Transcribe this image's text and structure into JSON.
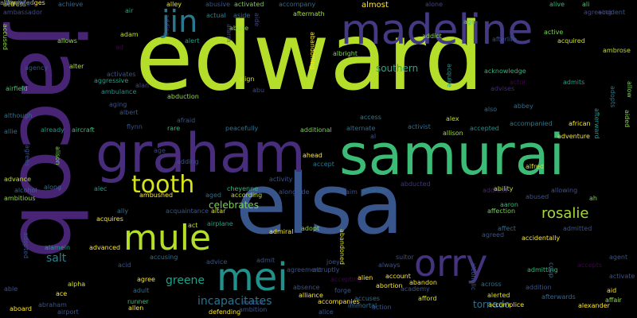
{
  "words": [
    {
      "text": "edward",
      "color": "#b5de2b"
    },
    {
      "text": "jacob",
      "color": "#482475"
    },
    {
      "text": "elsa",
      "color": "#39568c"
    },
    {
      "text": "samurai",
      "color": "#3bbb75"
    },
    {
      "text": "graham",
      "color": "#472d7b"
    },
    {
      "text": "madeline",
      "color": "#443a83"
    },
    {
      "text": "orry",
      "color": "#46337e"
    },
    {
      "text": "mule",
      "color": "#b5de2b"
    },
    {
      "text": "mei",
      "color": "#21918c"
    },
    {
      "text": "tooth",
      "color": "#d8e219"
    },
    {
      "text": "jin",
      "color": "#2a788e"
    },
    {
      "text": "rosalie",
      "color": "#a5db36"
    },
    {
      "text": "salt",
      "color": "#26828e"
    },
    {
      "text": "incapacitates",
      "color": "#2c728e"
    },
    {
      "text": "celebrates",
      "color": "#7ad151"
    },
    {
      "text": "greene",
      "color": "#1fa187"
    },
    {
      "text": "tornado",
      "color": "#2c728e"
    },
    {
      "text": "southern",
      "color": "#22a785"
    },
    {
      "text": "accept",
      "color": "#2a788e"
    },
    {
      "text": "actress",
      "color": "#bddf26"
    },
    {
      "text": "achieve",
      "color": "#31688e"
    },
    {
      "text": "air",
      "color": "#20a386"
    },
    {
      "text": "alley",
      "color": "#e5e419"
    },
    {
      "text": "abusive",
      "color": "#3a548c"
    },
    {
      "text": "activated",
      "color": "#75d054"
    },
    {
      "text": "accompany",
      "color": "#31688e"
    },
    {
      "text": "almost",
      "color": "#fde725"
    },
    {
      "text": "alone",
      "color": "#404588"
    },
    {
      "text": "alive",
      "color": "#35b779"
    },
    {
      "text": "ali",
      "color": "#52c569"
    },
    {
      "text": "accident",
      "color": "#38588c"
    },
    {
      "text": "ambassador",
      "color": "#3e4989"
    },
    {
      "text": "accused",
      "color": "#8fd744"
    },
    {
      "text": "allows",
      "color": "#90d743"
    },
    {
      "text": "adam",
      "color": "#c2df23"
    },
    {
      "text": "alert",
      "color": "#1fa088"
    },
    {
      "text": "alarm",
      "color": "#3f4788"
    },
    {
      "text": "abuse",
      "color": "#8bd646"
    },
    {
      "text": "aide",
      "color": "#404688"
    },
    {
      "text": "aftermath",
      "color": "#a2da37"
    },
    {
      "text": "addict",
      "color": "#85d54a"
    },
    {
      "text": "ago",
      "color": "#5ac864"
    },
    {
      "text": "afterlife",
      "color": "#3b528b"
    },
    {
      "text": "active",
      "color": "#7ad151"
    },
    {
      "text": "acquired",
      "color": "#cde11d"
    },
    {
      "text": "agreeing",
      "color": "#414487"
    },
    {
      "text": "ambrose",
      "color": "#bddf26"
    },
    {
      "text": "adding",
      "color": "#3b528b"
    },
    {
      "text": "actual",
      "color": "#26828e"
    },
    {
      "text": "aside",
      "color": "#2e6e8e"
    },
    {
      "text": "abandoning",
      "color": "#fde725"
    },
    {
      "text": "albright",
      "color": "#7fd34e"
    },
    {
      "text": "acquire",
      "color": "#1f948c"
    },
    {
      "text": "acknowledge",
      "color": "#31b57b"
    },
    {
      "text": "agency",
      "color": "#3b528b"
    },
    {
      "text": "ad",
      "color": "#440154"
    },
    {
      "text": "alter",
      "color": "#a8db34"
    },
    {
      "text": "activates",
      "color": "#3b528b"
    },
    {
      "text": "alan",
      "color": "#3e4989"
    },
    {
      "text": "aggressive",
      "color": "#1fa187"
    },
    {
      "text": "airfield",
      "color": "#48c16e"
    },
    {
      "text": "ambulance",
      "color": "#21918c"
    },
    {
      "text": "align",
      "color": "#d2e21b"
    },
    {
      "text": "abu",
      "color": "#3e4989"
    },
    {
      "text": "advises",
      "color": "#472a7a"
    },
    {
      "text": "actor",
      "color": "#440154"
    },
    {
      "text": "admits",
      "color": "#1fa088"
    },
    {
      "text": "abbey",
      "color": "#2e6e8e"
    },
    {
      "text": "allow",
      "color": "#77d153"
    },
    {
      "text": "abduction",
      "color": "#90d743"
    },
    {
      "text": "aging",
      "color": "#3b528b"
    },
    {
      "text": "albert",
      "color": "#3a548c"
    },
    {
      "text": "also",
      "color": "#31688e"
    },
    {
      "text": "adopts",
      "color": "#2a788e"
    },
    {
      "text": "afterward",
      "color": "#1f988b"
    },
    {
      "text": "aided",
      "color": "#8bd646"
    },
    {
      "text": "although",
      "color": "#2d708e"
    },
    {
      "text": "afraid",
      "color": "#3b528b"
    },
    {
      "text": "access",
      "color": "#26828e"
    },
    {
      "text": "alex",
      "color": "#bddf26"
    },
    {
      "text": "accompanied",
      "color": "#2a788e"
    },
    {
      "text": "african",
      "color": "#fde725"
    },
    {
      "text": "allie",
      "color": "#2e6e8e"
    },
    {
      "text": "already",
      "color": "#1f988b"
    },
    {
      "text": "aircraft",
      "color": "#3bbb75"
    },
    {
      "text": "flynn",
      "color": "#3b528b"
    },
    {
      "text": "rare",
      "color": "#35b779"
    },
    {
      "text": "peacefully",
      "color": "#2c728e"
    },
    {
      "text": "additional",
      "color": "#75d054"
    },
    {
      "text": "alternate",
      "color": "#2e6e8e"
    },
    {
      "text": "activist",
      "color": "#2e6e8e"
    },
    {
      "text": "accepted",
      "color": "#21918c"
    },
    {
      "text": "adventure",
      "color": "#fde725"
    },
    {
      "text": "al",
      "color": "#3b528b"
    },
    {
      "text": "allison",
      "color": "#a0da39"
    },
    {
      "text": "agrees",
      "color": "#3b528b"
    },
    {
      "text": "alison",
      "color": "#7ad151"
    },
    {
      "text": "age",
      "color": "#414487"
    },
    {
      "text": "adding",
      "color": "#3b528b"
    },
    {
      "text": "ahead",
      "color": "#fde725"
    },
    {
      "text": "alfred",
      "color": "#d8e219"
    },
    {
      "text": "advance",
      "color": "#bddf26"
    },
    {
      "text": "along",
      "color": "#2e6e8e"
    },
    {
      "text": "alcohol",
      "color": "#31688e"
    },
    {
      "text": "ambitious",
      "color": "#8fd744"
    },
    {
      "text": "ambushed",
      "color": "#fde725"
    },
    {
      "text": "aged",
      "color": "#2e6e8e"
    },
    {
      "text": "according",
      "color": "#bddf26"
    },
    {
      "text": "activity",
      "color": "#3b528b"
    },
    {
      "text": "abducted",
      "color": "#46337e"
    },
    {
      "text": "address",
      "color": "#482475"
    },
    {
      "text": "ability",
      "color": "#bddf26"
    },
    {
      "text": "allowing",
      "color": "#3a548c"
    },
    {
      "text": "alec",
      "color": "#1fa088"
    },
    {
      "text": "cheyenne",
      "color": "#35b779"
    },
    {
      "text": "alongside",
      "color": "#3a548c"
    },
    {
      "text": "aim",
      "color": "#3b528b"
    },
    {
      "text": "amends",
      "color": "#2e6e8e"
    },
    {
      "text": "abused",
      "color": "#3b528b"
    },
    {
      "text": "ah",
      "color": "#7ad151"
    },
    {
      "text": "ally",
      "color": "#2e6e8e"
    },
    {
      "text": "acquaintance",
      "color": "#3b528b"
    },
    {
      "text": "altar",
      "color": "#d2e21b"
    },
    {
      "text": "acquires",
      "color": "#fde725"
    },
    {
      "text": "aaron",
      "color": "#35b779"
    },
    {
      "text": "affection",
      "color": "#75d054"
    },
    {
      "text": "act",
      "color": "#bddf26"
    },
    {
      "text": "airplane",
      "color": "#1fa187"
    },
    {
      "text": "admiral",
      "color": "#fde725"
    },
    {
      "text": "adopt",
      "color": "#8fd744"
    },
    {
      "text": "abandoned",
      "color": "#d8e219"
    },
    {
      "text": "affect",
      "color": "#2e6e8e"
    },
    {
      "text": "admitted",
      "color": "#3b528b"
    },
    {
      "text": "agreed",
      "color": "#3b528b"
    },
    {
      "text": "accidentally",
      "color": "#fde725"
    },
    {
      "text": "adopted",
      "color": "#3b528b"
    },
    {
      "text": "alamein",
      "color": "#1fa187"
    },
    {
      "text": "advanced",
      "color": "#fde725"
    },
    {
      "text": "accusing",
      "color": "#2e6e8e"
    },
    {
      "text": "advice",
      "color": "#3a548c"
    },
    {
      "text": "admit",
      "color": "#3b528b"
    },
    {
      "text": "agreement",
      "color": "#3b528b"
    },
    {
      "text": "abruptly",
      "color": "#3b528b"
    },
    {
      "text": "joey",
      "color": "#3b528b"
    },
    {
      "text": "always",
      "color": "#3b528b"
    },
    {
      "text": "suitor",
      "color": "#3b528b"
    },
    {
      "text": "admitting",
      "color": "#35b779"
    },
    {
      "text": "accepts",
      "color": "#440154"
    },
    {
      "text": "agent",
      "color": "#3b528b"
    },
    {
      "text": "acid",
      "color": "#3b528b"
    },
    {
      "text": "agree",
      "color": "#fde725"
    },
    {
      "text": "adult",
      "color": "#2e6e8e"
    },
    {
      "text": "account",
      "color": "#fde725"
    },
    {
      "text": "abandon",
      "color": "#fde725"
    },
    {
      "text": "alcoholic",
      "color": "#3b528b"
    },
    {
      "text": "coup",
      "color": "#2e6e8e"
    },
    {
      "text": "activate",
      "color": "#3b528b"
    },
    {
      "text": "alpha",
      "color": "#d8e219"
    },
    {
      "text": "absence",
      "color": "#3b528b"
    },
    {
      "text": "accepting",
      "color": "#440154"
    },
    {
      "text": "alien",
      "color": "#fde725"
    },
    {
      "text": "abortion",
      "color": "#fde725"
    },
    {
      "text": "academy",
      "color": "#3b528b"
    },
    {
      "text": "across",
      "color": "#2e6e8e"
    },
    {
      "text": "addition",
      "color": "#3b528b"
    },
    {
      "text": "aid",
      "color": "#fde725"
    },
    {
      "text": "able",
      "color": "#3b528b"
    },
    {
      "text": "ace",
      "color": "#fde725"
    },
    {
      "text": "runner",
      "color": "#35b779"
    },
    {
      "text": "alliance",
      "color": "#fde725"
    },
    {
      "text": "forge",
      "color": "#3b528b"
    },
    {
      "text": "accuses",
      "color": "#2e6e8e"
    },
    {
      "text": "afford",
      "color": "#d8e219"
    },
    {
      "text": "alerted",
      "color": "#d8e219"
    },
    {
      "text": "afterwards",
      "color": "#31688e"
    },
    {
      "text": "affair",
      "color": "#8fd744"
    },
    {
      "text": "abraham",
      "color": "#3b528b"
    },
    {
      "text": "allen",
      "color": "#fde725"
    },
    {
      "text": "defending",
      "color": "#fde725"
    },
    {
      "text": "ambition",
      "color": "#3b528b"
    },
    {
      "text": "accompanies",
      "color": "#fde725"
    },
    {
      "text": "immortal",
      "color": "#2e6e8e"
    },
    {
      "text": "action",
      "color": "#3b528b"
    },
    {
      "text": "accomplice",
      "color": "#fde725"
    },
    {
      "text": "alexander",
      "color": "#fde725"
    },
    {
      "text": "aboard",
      "color": "#fde725"
    },
    {
      "text": "airport",
      "color": "#3b528b"
    },
    {
      "text": "alice",
      "color": "#3b528b"
    },
    {
      "text": "moore",
      "color": "#3b528b"
    },
    {
      "text": "actually",
      "color": "#3b528b"
    },
    {
      "text": "acknowledges",
      "color": "#fde725"
    },
    {
      "text": "advantage",
      "color": "#3b528b"
    },
    {
      "text": "allowed",
      "color": "#3b528b"
    },
    {
      "text": "acting",
      "color": "#3b528b"
    },
    {
      "text": "abby",
      "color": "#fde725"
    },
    {
      "text": "add",
      "color": "#3b528b"
    }
  ]
}
